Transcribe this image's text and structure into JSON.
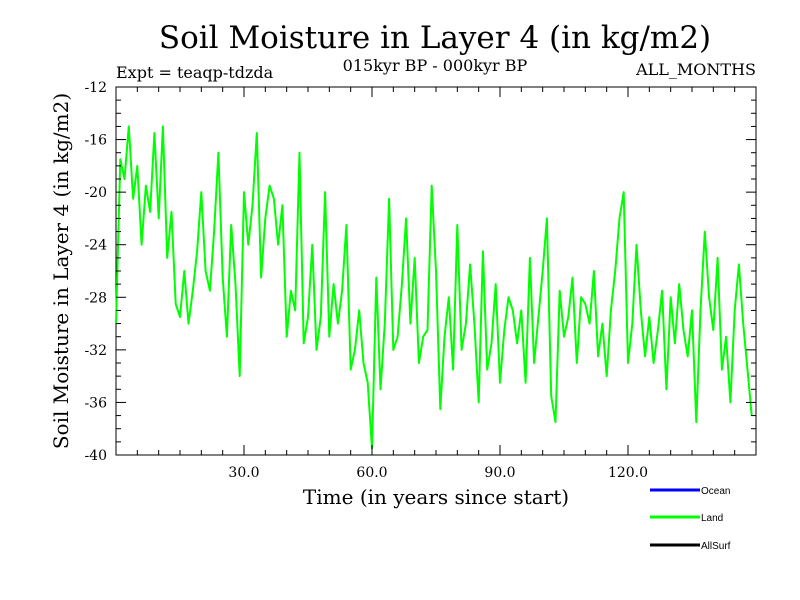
{
  "chart_data": {
    "type": "line",
    "title": "Soil Moisture in Layer 4 (in kg/m2)",
    "subtitle_left": "Expt = teaqp-tdzda",
    "subtitle_center": "015kyr BP - 000kyr BP",
    "subtitle_right": "ALL_MONTHS",
    "xlabel": "Time (in years since start)",
    "ylabel": "Soil Moisture in Layer 4 (in kg/m2)",
    "xlim": [
      0,
      150
    ],
    "ylim": [
      -40,
      -12
    ],
    "xticks": [
      30,
      60,
      90,
      120
    ],
    "xtick_labels": [
      "30.0",
      "60.0",
      "90.0",
      "120.0"
    ],
    "yticks": [
      -40,
      -36,
      -32,
      -28,
      -24,
      -20,
      -16,
      -12
    ],
    "ytick_labels": [
      "-40",
      "-36",
      "-32",
      "-28",
      "-24",
      "-20",
      "-16",
      "-12"
    ],
    "legend": [
      {
        "name": "Ocean",
        "color": "#0000ff"
      },
      {
        "name": "Land",
        "color": "#00ff00"
      },
      {
        "name": "AllSurf",
        "color": "#000000"
      }
    ],
    "series": [
      {
        "name": "Land",
        "color": "#00ff00",
        "x_start": 0,
        "x_step": 1,
        "values": [
          -30.0,
          -17.5,
          -19.0,
          -15.0,
          -20.5,
          -18.0,
          -24.0,
          -19.5,
          -21.5,
          -15.5,
          -22.0,
          -15.0,
          -25.0,
          -21.5,
          -28.5,
          -29.5,
          -26.0,
          -30.0,
          -27.5,
          -24.5,
          -20.0,
          -26.0,
          -27.5,
          -23.0,
          -17.0,
          -26.5,
          -31.0,
          -22.5,
          -27.0,
          -34.0,
          -20.0,
          -24.0,
          -21.0,
          -15.5,
          -26.5,
          -22.0,
          -19.5,
          -20.5,
          -24.0,
          -21.0,
          -31.0,
          -27.5,
          -29.0,
          -17.0,
          -31.5,
          -29.5,
          -24.0,
          -32.0,
          -29.5,
          -20.0,
          -31.0,
          -27.0,
          -30.0,
          -27.5,
          -22.5,
          -33.5,
          -32.0,
          -29.0,
          -33.0,
          -34.5,
          -39.5,
          -26.5,
          -35.0,
          -30.0,
          -20.5,
          -32.0,
          -31.0,
          -27.0,
          -22.0,
          -30.0,
          -25.0,
          -33.0,
          -31.0,
          -30.5,
          -19.5,
          -26.0,
          -36.5,
          -31.0,
          -28.0,
          -33.5,
          -22.5,
          -32.0,
          -30.0,
          -25.5,
          -30.0,
          -36.0,
          -24.5,
          -33.5,
          -31.5,
          -27.0,
          -34.5,
          -30.5,
          -28.0,
          -29.0,
          -31.5,
          -29.0,
          -34.5,
          -25.0,
          -33.0,
          -29.5,
          -26.0,
          -22.0,
          -35.5,
          -37.5,
          -27.5,
          -31.0,
          -29.5,
          -26.5,
          -33.0,
          -28.0,
          -28.5,
          -30.0,
          -26.0,
          -32.5,
          -30.0,
          -34.0,
          -29.0,
          -26.0,
          -22.0,
          -20.0,
          -33.0,
          -30.0,
          -24.0,
          -29.0,
          -32.5,
          -29.5,
          -33.0,
          -30.5,
          -27.5,
          -35.0,
          -28.0,
          -31.5,
          -27.0,
          -30.5,
          -32.5,
          -29.0,
          -37.5,
          -29.0,
          -23.0,
          -28.0,
          -30.5,
          -25.0,
          -33.5,
          -31.0,
          -36.0,
          -29.0,
          -25.5,
          -30.0,
          -33.5,
          -37.0
        ]
      }
    ],
    "grid": false
  }
}
